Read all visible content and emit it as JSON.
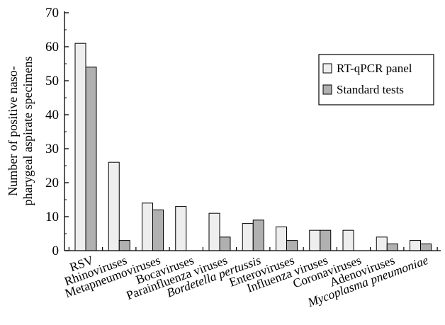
{
  "chart_data": {
    "type": "bar",
    "ylabel_lines": [
      "Number of positive naso-",
      "pharygeal aspirate specimens"
    ],
    "ylim": [
      0,
      70
    ],
    "yticks": [
      0,
      10,
      20,
      30,
      40,
      50,
      60,
      70
    ],
    "grid": false,
    "legend_position": "right",
    "categories": [
      "RSV",
      "Rhinoviruses",
      "Metapneumoviruses",
      "Bocaviruses",
      "Parainfluenza viruses",
      "Bordetella pertussis",
      "Enteroviruses",
      "Influenza viruses",
      "Coronaviruses",
      "Adenoviruses",
      "Mycoplasma pneumoniae"
    ],
    "italic_categories": [
      false,
      false,
      false,
      false,
      false,
      true,
      false,
      false,
      false,
      false,
      true
    ],
    "series": [
      {
        "name": "RT-qPCR panel",
        "color": "#eeeeee",
        "values": [
          61,
          26,
          14,
          13,
          11,
          8,
          7,
          6,
          6,
          4,
          3
        ]
      },
      {
        "name": "Standard tests",
        "color": "#b0b0b0",
        "values": [
          54,
          3,
          12,
          0,
          4,
          9,
          3,
          6,
          0,
          2,
          2
        ]
      }
    ]
  }
}
